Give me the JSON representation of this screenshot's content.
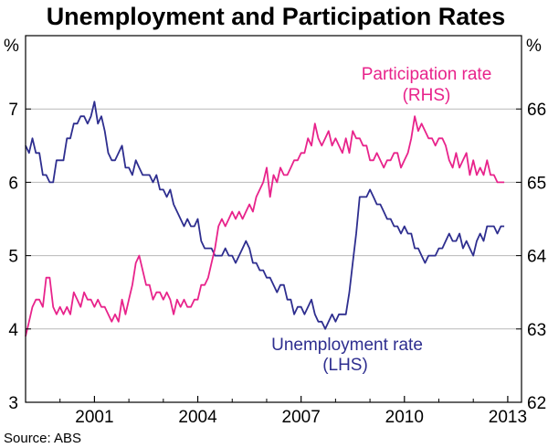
{
  "chart_data": {
    "type": "line",
    "title": "Unemployment and Participation Rates",
    "source": "Source: ABS",
    "left_axis": {
      "unit": "%",
      "range": [
        3,
        8
      ],
      "ticks": [
        "3",
        "4",
        "5",
        "6",
        "7"
      ]
    },
    "right_axis": {
      "unit": "%",
      "range": [
        62,
        67
      ],
      "ticks": [
        "62",
        "63",
        "64",
        "65",
        "66"
      ]
    },
    "x_axis": {
      "range": [
        1999.0,
        2013.4
      ],
      "ticks": [
        2001,
        2004,
        2007,
        2010,
        2013
      ],
      "tick_labels": [
        "2001",
        "2004",
        "2007",
        "2010",
        "2013"
      ]
    },
    "grid": true,
    "series": [
      {
        "name": "Unemployment rate",
        "axis": "left",
        "color": "#2e2e8f",
        "label_lines": [
          "Unemployment rate",
          "(LHS)"
        ],
        "x": [
          1999.0,
          1999.1,
          1999.2,
          1999.3,
          1999.4,
          1999.5,
          1999.6,
          1999.7,
          1999.8,
          1999.9,
          2000.0,
          2000.1,
          2000.2,
          2000.3,
          2000.4,
          2000.5,
          2000.6,
          2000.7,
          2000.8,
          2000.9,
          2001.0,
          2001.1,
          2001.2,
          2001.3,
          2001.4,
          2001.5,
          2001.6,
          2001.7,
          2001.8,
          2001.9,
          2002.0,
          2002.1,
          2002.2,
          2002.3,
          2002.4,
          2002.5,
          2002.6,
          2002.7,
          2002.8,
          2002.9,
          2003.0,
          2003.1,
          2003.2,
          2003.3,
          2003.4,
          2003.5,
          2003.6,
          2003.7,
          2003.8,
          2003.9,
          2004.0,
          2004.1,
          2004.2,
          2004.3,
          2004.4,
          2004.5,
          2004.6,
          2004.7,
          2004.8,
          2004.9,
          2005.0,
          2005.1,
          2005.2,
          2005.3,
          2005.4,
          2005.5,
          2005.6,
          2005.7,
          2005.8,
          2005.9,
          2006.0,
          2006.1,
          2006.2,
          2006.3,
          2006.4,
          2006.5,
          2006.6,
          2006.7,
          2006.8,
          2006.9,
          2007.0,
          2007.1,
          2007.2,
          2007.3,
          2007.4,
          2007.5,
          2007.6,
          2007.7,
          2007.8,
          2007.9,
          2008.0,
          2008.1,
          2008.2,
          2008.3,
          2008.4,
          2008.5,
          2008.6,
          2008.7,
          2008.8,
          2008.9,
          2009.0,
          2009.1,
          2009.2,
          2009.3,
          2009.4,
          2009.5,
          2009.6,
          2009.7,
          2009.8,
          2009.9,
          2010.0,
          2010.1,
          2010.2,
          2010.3,
          2010.4,
          2010.5,
          2010.6,
          2010.7,
          2010.8,
          2010.9,
          2011.0,
          2011.1,
          2011.2,
          2011.3,
          2011.4,
          2011.5,
          2011.6,
          2011.7,
          2011.8,
          2011.9,
          2012.0,
          2012.1,
          2012.2,
          2012.3,
          2012.4,
          2012.5,
          2012.6,
          2012.7,
          2012.8,
          2012.9
        ],
        "values": [
          6.5,
          6.4,
          6.6,
          6.4,
          6.4,
          6.1,
          6.1,
          6.0,
          6.0,
          6.3,
          6.3,
          6.3,
          6.6,
          6.6,
          6.8,
          6.8,
          6.9,
          6.9,
          6.8,
          6.9,
          7.1,
          6.8,
          6.9,
          6.7,
          6.4,
          6.3,
          6.3,
          6.4,
          6.5,
          6.2,
          6.2,
          6.1,
          6.3,
          6.2,
          6.1,
          6.1,
          6.1,
          6.0,
          6.1,
          5.9,
          5.9,
          5.8,
          5.9,
          5.7,
          5.6,
          5.5,
          5.4,
          5.5,
          5.4,
          5.4,
          5.5,
          5.2,
          5.1,
          5.1,
          5.1,
          5.0,
          5.0,
          5.0,
          5.1,
          5.0,
          5.0,
          4.9,
          5.0,
          5.1,
          5.2,
          5.1,
          4.9,
          4.9,
          4.8,
          4.8,
          4.7,
          4.7,
          4.6,
          4.5,
          4.6,
          4.6,
          4.4,
          4.4,
          4.2,
          4.3,
          4.3,
          4.2,
          4.3,
          4.4,
          4.2,
          4.1,
          4.1,
          4.0,
          4.1,
          4.2,
          4.1,
          4.2,
          4.2,
          4.2,
          4.5,
          4.9,
          5.3,
          5.8,
          5.8,
          5.8,
          5.9,
          5.8,
          5.7,
          5.7,
          5.6,
          5.5,
          5.5,
          5.4,
          5.4,
          5.3,
          5.4,
          5.3,
          5.3,
          5.1,
          5.1,
          5.0,
          4.9,
          5.0,
          5.0,
          5.0,
          5.1,
          5.1,
          5.2,
          5.3,
          5.2,
          5.2,
          5.3,
          5.1,
          5.2,
          5.1,
          5.0,
          5.2,
          5.3,
          5.2,
          5.4,
          5.4,
          5.4,
          5.3,
          5.4,
          5.4
        ]
      },
      {
        "name": "Participation rate",
        "axis": "right",
        "color": "#e8238b",
        "label_lines": [
          "Participation rate",
          "(RHS)"
        ],
        "x": [
          1999.0,
          1999.1,
          1999.2,
          1999.3,
          1999.4,
          1999.5,
          1999.6,
          1999.7,
          1999.8,
          1999.9,
          2000.0,
          2000.1,
          2000.2,
          2000.3,
          2000.4,
          2000.5,
          2000.6,
          2000.7,
          2000.8,
          2000.9,
          2001.0,
          2001.1,
          2001.2,
          2001.3,
          2001.4,
          2001.5,
          2001.6,
          2001.7,
          2001.8,
          2001.9,
          2002.0,
          2002.1,
          2002.2,
          2002.3,
          2002.4,
          2002.5,
          2002.6,
          2002.7,
          2002.8,
          2002.9,
          2003.0,
          2003.1,
          2003.2,
          2003.3,
          2003.4,
          2003.5,
          2003.6,
          2003.7,
          2003.8,
          2003.9,
          2004.0,
          2004.1,
          2004.2,
          2004.3,
          2004.4,
          2004.5,
          2004.6,
          2004.7,
          2004.8,
          2004.9,
          2005.0,
          2005.1,
          2005.2,
          2005.3,
          2005.4,
          2005.5,
          2005.6,
          2005.7,
          2005.8,
          2005.9,
          2006.0,
          2006.1,
          2006.2,
          2006.3,
          2006.4,
          2006.5,
          2006.6,
          2006.7,
          2006.8,
          2006.9,
          2007.0,
          2007.1,
          2007.2,
          2007.3,
          2007.4,
          2007.5,
          2007.6,
          2007.7,
          2007.8,
          2007.9,
          2008.0,
          2008.1,
          2008.2,
          2008.3,
          2008.4,
          2008.5,
          2008.6,
          2008.7,
          2008.8,
          2008.9,
          2009.0,
          2009.1,
          2009.2,
          2009.3,
          2009.4,
          2009.5,
          2009.6,
          2009.7,
          2009.8,
          2009.9,
          2010.0,
          2010.1,
          2010.2,
          2010.3,
          2010.4,
          2010.5,
          2010.6,
          2010.7,
          2010.8,
          2010.9,
          2011.0,
          2011.1,
          2011.2,
          2011.3,
          2011.4,
          2011.5,
          2011.6,
          2011.7,
          2011.8,
          2011.9,
          2012.0,
          2012.1,
          2012.2,
          2012.3,
          2012.4,
          2012.5,
          2012.6,
          2012.7,
          2012.8,
          2012.9
        ],
        "values": [
          62.9,
          63.1,
          63.3,
          63.4,
          63.4,
          63.3,
          63.7,
          63.7,
          63.3,
          63.2,
          63.3,
          63.2,
          63.3,
          63.2,
          63.5,
          63.4,
          63.3,
          63.5,
          63.4,
          63.4,
          63.3,
          63.4,
          63.3,
          63.3,
          63.2,
          63.1,
          63.2,
          63.1,
          63.4,
          63.2,
          63.4,
          63.6,
          63.9,
          64.0,
          63.8,
          63.6,
          63.6,
          63.4,
          63.5,
          63.5,
          63.4,
          63.5,
          63.4,
          63.2,
          63.4,
          63.3,
          63.4,
          63.3,
          63.3,
          63.4,
          63.4,
          63.6,
          63.6,
          63.7,
          63.9,
          64.1,
          64.4,
          64.5,
          64.4,
          64.5,
          64.6,
          64.5,
          64.6,
          64.5,
          64.6,
          64.7,
          64.6,
          64.8,
          64.9,
          65.0,
          65.2,
          64.8,
          65.1,
          65.0,
          65.2,
          65.1,
          65.1,
          65.2,
          65.3,
          65.3,
          65.4,
          65.4,
          65.6,
          65.5,
          65.8,
          65.6,
          65.5,
          65.6,
          65.7,
          65.5,
          65.6,
          65.5,
          65.4,
          65.6,
          65.4,
          65.7,
          65.6,
          65.6,
          65.5,
          65.5,
          65.3,
          65.3,
          65.4,
          65.3,
          65.2,
          65.3,
          65.3,
          65.4,
          65.4,
          65.2,
          65.3,
          65.4,
          65.6,
          65.9,
          65.7,
          65.8,
          65.7,
          65.6,
          65.6,
          65.5,
          65.6,
          65.6,
          65.5,
          65.3,
          65.2,
          65.4,
          65.2,
          65.3,
          65.4,
          65.1,
          65.3,
          65.1,
          65.2,
          65.1,
          65.3,
          65.1,
          65.1,
          65.0,
          65.0,
          65.0
        ]
      }
    ]
  }
}
